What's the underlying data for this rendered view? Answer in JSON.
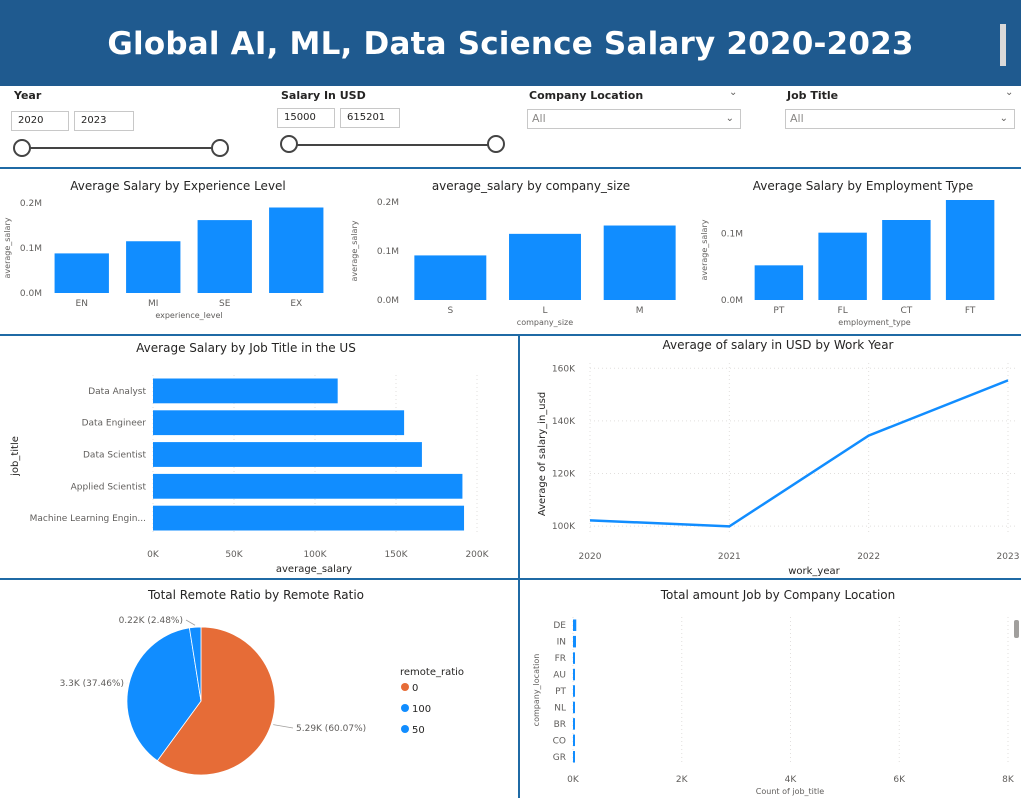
{
  "header": {
    "title": "Global AI, ML, Data Science Salary 2020-2023"
  },
  "filters": {
    "year": {
      "label": "Year",
      "from": "2020",
      "to": "2023"
    },
    "salary": {
      "label": "Salary In USD",
      "from": "15000",
      "to": "615201"
    },
    "company_location": {
      "label": "Company Location",
      "value": "All"
    },
    "job_title": {
      "label": "Job Title",
      "value": "All"
    }
  },
  "colors": {
    "blue": "#118dff",
    "orange": "#e66c37",
    "banner": "#1f5a8f"
  },
  "chart_data": [
    {
      "type": "bar",
      "title": "Average Salary by Experience Level",
      "xlabel": "experience_level",
      "ylabel": "average_salary",
      "categories": [
        "EN",
        "MI",
        "SE",
        "EX"
      ],
      "values": [
        88000,
        115000,
        162000,
        190000
      ],
      "yticks": [
        "0.0M",
        "0.1M",
        "0.2M"
      ],
      "ylim": [
        0,
        200000
      ]
    },
    {
      "type": "bar",
      "title": "average_salary by company_size",
      "xlabel": "company_size",
      "ylabel": "average_salary",
      "categories": [
        "S",
        "L",
        "M"
      ],
      "values": [
        91000,
        135000,
        152000
      ],
      "yticks": [
        "0.0M",
        "0.1M",
        "0.2M"
      ],
      "ylim": [
        0,
        200000
      ]
    },
    {
      "type": "bar",
      "title": "Average Salary by Employment Type",
      "xlabel": "employment_type",
      "ylabel": "average_salary",
      "categories": [
        "PT",
        "FL",
        "CT",
        "FT"
      ],
      "values": [
        52000,
        101000,
        120000,
        150000
      ],
      "yticks": [
        "0.0M",
        "0.1M"
      ],
      "ylim": [
        0,
        150000
      ]
    },
    {
      "type": "bar",
      "orientation": "horizontal",
      "title": "Average Salary by Job Title in the US",
      "xlabel": "average_salary",
      "ylabel": "job_title",
      "categories": [
        "Data Analyst",
        "Data Engineer",
        "Data Scientist",
        "Applied Scientist",
        "Machine Learning Engin..."
      ],
      "values": [
        114000,
        155000,
        166000,
        191000,
        192000
      ],
      "xticks": [
        "0K",
        "50K",
        "100K",
        "150K",
        "200K"
      ],
      "xlim": [
        0,
        200000
      ]
    },
    {
      "type": "line",
      "title": "Average of salary in USD by Work Year",
      "xlabel": "work_year",
      "ylabel": "Average of salary_in_usd",
      "x": [
        "2020",
        "2021",
        "2022",
        "2023"
      ],
      "values": [
        102200,
        99900,
        134400,
        155400
      ],
      "yticks": [
        "100K",
        "120K",
        "140K",
        "160K"
      ],
      "ylim": [
        97000,
        162000
      ]
    },
    {
      "type": "pie",
      "title": "Total Remote Ratio by Remote Ratio",
      "legend_title": "remote_ratio",
      "slices": [
        {
          "name": "0",
          "value": 5290,
          "label": "5.29K (60.07%)",
          "color": "#e66c37"
        },
        {
          "name": "100",
          "value": 3300,
          "label": "3.3K (37.46%)",
          "color": "#118dff"
        },
        {
          "name": "50",
          "value": 220,
          "label": "0.22K (2.48%)",
          "color": "#118dff"
        }
      ]
    },
    {
      "type": "bar",
      "orientation": "horizontal",
      "title": "Total amount Job by Company Location",
      "xlabel": "Count of job_title",
      "ylabel": "company_location",
      "categories": [
        "DE",
        "IN",
        "FR",
        "AU",
        "PT",
        "NL",
        "BR",
        "CO",
        "GR"
      ],
      "values": [
        60,
        55,
        30,
        20,
        15,
        14,
        12,
        10,
        8
      ],
      "xticks": [
        "0K",
        "2K",
        "4K",
        "6K",
        "8K"
      ],
      "xlim": [
        0,
        8000
      ]
    }
  ]
}
